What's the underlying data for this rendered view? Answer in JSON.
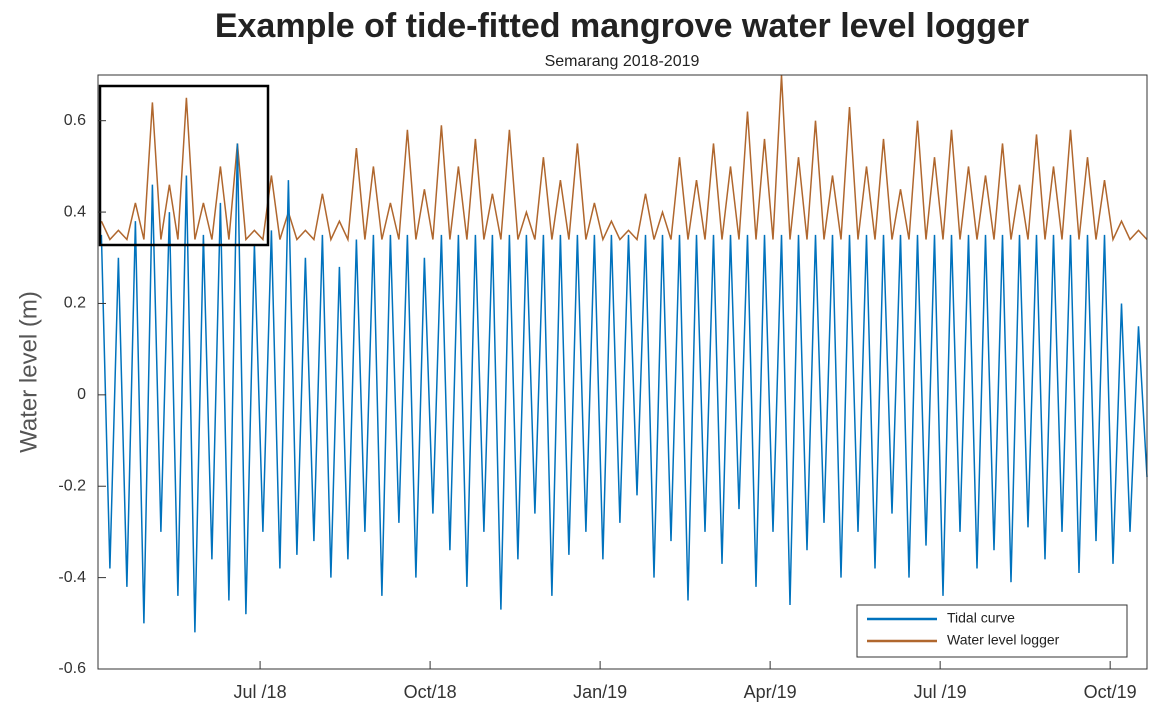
{
  "chart_data": {
    "type": "line",
    "title": "Example of tide-fitted mangrove water level logger",
    "subtitle": "Semarang 2018-2019",
    "y_label": "Water level (m)",
    "xlim": [
      3.14,
      21.65
    ],
    "xticks": [
      {
        "value": 6,
        "label": "Jul /18"
      },
      {
        "value": 9,
        "label": "Oct/18"
      },
      {
        "value": 12,
        "label": "Jan/19"
      },
      {
        "value": 15,
        "label": "Apr/19"
      },
      {
        "value": 18,
        "label": "Jul /19"
      },
      {
        "value": 21,
        "label": "Oct/19"
      }
    ],
    "ylim": [
      -0.6,
      0.7
    ],
    "yticks": [
      -0.6,
      -0.4,
      -0.2,
      0,
      0.2,
      0.4,
      0.6
    ],
    "legend": "lower right",
    "x": [
      3.2,
      3.35,
      3.5,
      3.65,
      3.8,
      3.95,
      4.1,
      4.25,
      4.4,
      4.55,
      4.7,
      4.85,
      5,
      5.15,
      5.3,
      5.45,
      5.6,
      5.75,
      5.9,
      6.05,
      6.2,
      6.35,
      6.5,
      6.65,
      6.8,
      6.95,
      7.1,
      7.25,
      7.4,
      7.55,
      7.7,
      7.85,
      8,
      8.15,
      8.3,
      8.45,
      8.6,
      8.75,
      8.9,
      9.05,
      9.2,
      9.35,
      9.5,
      9.65,
      9.8,
      9.95,
      10.1,
      10.25,
      10.4,
      10.55,
      10.7,
      10.85,
      11,
      11.15,
      11.3,
      11.45,
      11.6,
      11.75,
      11.9,
      12.05,
      12.2,
      12.35,
      12.5,
      12.65,
      12.8,
      12.95,
      13.1,
      13.25,
      13.4,
      13.55,
      13.7,
      13.85,
      14,
      14.15,
      14.3,
      14.45,
      14.6,
      14.75,
      14.9,
      15.05,
      15.2,
      15.35,
      15.5,
      15.65,
      15.8,
      15.95,
      16.1,
      16.25,
      16.4,
      16.55,
      16.7,
      16.85,
      17,
      17.15,
      17.3,
      17.45,
      17.6,
      17.75,
      17.9,
      18.05,
      18.2,
      18.35,
      18.5,
      18.65,
      18.8,
      18.95,
      19.1,
      19.25,
      19.4,
      19.55,
      19.7,
      19.85,
      20,
      20.15,
      20.3,
      20.45,
      20.6,
      20.75,
      20.9,
      21.05,
      21.2,
      21.35,
      21.5,
      21.65
    ],
    "series": [
      {
        "name": "Tidal curve",
        "color": "#0072bd",
        "values": [
          0.35,
          -0.38,
          0.3,
          -0.42,
          0.38,
          -0.5,
          0.46,
          -0.3,
          0.4,
          -0.44,
          0.48,
          -0.52,
          0.35,
          -0.36,
          0.42,
          -0.45,
          0.55,
          -0.48,
          0.33,
          -0.3,
          0.36,
          -0.38,
          0.47,
          -0.35,
          0.3,
          -0.32,
          0.35,
          -0.4,
          0.28,
          -0.36,
          0.34,
          -0.3,
          0.35,
          -0.44,
          0.35,
          -0.28,
          0.35,
          -0.4,
          0.3,
          -0.26,
          0.35,
          -0.34,
          0.35,
          -0.42,
          0.35,
          -0.3,
          0.35,
          -0.47,
          0.35,
          -0.36,
          0.35,
          -0.26,
          0.35,
          -0.44,
          0.35,
          -0.35,
          0.35,
          -0.3,
          0.35,
          -0.36,
          0.35,
          -0.28,
          0.35,
          -0.22,
          0.35,
          -0.4,
          0.35,
          -0.32,
          0.35,
          -0.45,
          0.35,
          -0.3,
          0.35,
          -0.37,
          0.35,
          -0.25,
          0.35,
          -0.42,
          0.35,
          -0.3,
          0.35,
          -0.46,
          0.35,
          -0.34,
          0.35,
          -0.28,
          0.35,
          -0.4,
          0.35,
          -0.3,
          0.35,
          -0.38,
          0.35,
          -0.26,
          0.35,
          -0.4,
          0.35,
          -0.33,
          0.35,
          -0.44,
          0.35,
          -0.3,
          0.35,
          -0.38,
          0.35,
          -0.34,
          0.35,
          -0.41,
          0.35,
          -0.29,
          0.35,
          -0.36,
          0.35,
          -0.3,
          0.35,
          -0.39,
          0.35,
          -0.32,
          0.35,
          -0.37,
          0.2,
          -0.3,
          0.15,
          -0.18
        ]
      },
      {
        "name": "Water level logger",
        "color": "#b0672e",
        "values": [
          0.38,
          0.34,
          0.36,
          0.34,
          0.42,
          0.34,
          0.64,
          0.34,
          0.46,
          0.34,
          0.65,
          0.34,
          0.42,
          0.34,
          0.5,
          0.34,
          0.55,
          0.34,
          0.36,
          0.34,
          0.48,
          0.34,
          0.4,
          0.34,
          0.36,
          0.34,
          0.44,
          0.34,
          0.38,
          0.34,
          0.54,
          0.34,
          0.5,
          0.34,
          0.42,
          0.34,
          0.58,
          0.34,
          0.45,
          0.34,
          0.59,
          0.34,
          0.5,
          0.34,
          0.56,
          0.34,
          0.44,
          0.34,
          0.58,
          0.34,
          0.4,
          0.34,
          0.52,
          0.34,
          0.47,
          0.34,
          0.55,
          0.34,
          0.42,
          0.34,
          0.38,
          0.34,
          0.36,
          0.34,
          0.44,
          0.34,
          0.4,
          0.34,
          0.52,
          0.34,
          0.47,
          0.34,
          0.55,
          0.34,
          0.5,
          0.34,
          0.62,
          0.34,
          0.56,
          0.34,
          0.7,
          0.34,
          0.52,
          0.34,
          0.6,
          0.34,
          0.48,
          0.34,
          0.63,
          0.34,
          0.5,
          0.34,
          0.56,
          0.34,
          0.45,
          0.34,
          0.6,
          0.34,
          0.52,
          0.34,
          0.58,
          0.34,
          0.5,
          0.34,
          0.48,
          0.34,
          0.55,
          0.34,
          0.46,
          0.34,
          0.57,
          0.34,
          0.5,
          0.34,
          0.58,
          0.34,
          0.52,
          0.34,
          0.47,
          0.34,
          0.38,
          0.34,
          0.36,
          0.34
        ]
      }
    ]
  }
}
